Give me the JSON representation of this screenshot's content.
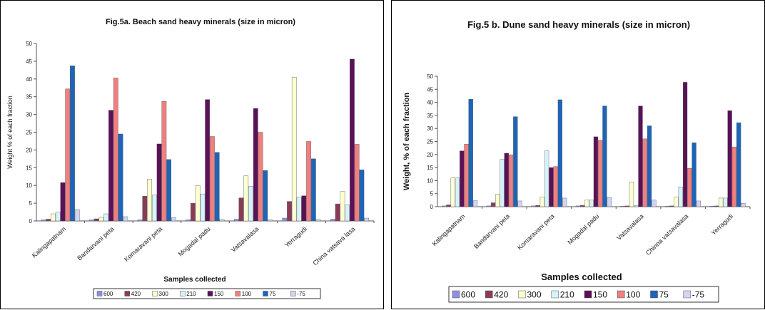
{
  "colors": {
    "600": "#8f8fe0",
    "420": "#8b3b5a",
    "300": "#ffffd2",
    "210": "#d6f3fb",
    "150": "#5a1158",
    "100": "#f07f80",
    "75": "#1d65b8",
    "-75": "#d3d3f3"
  },
  "chart_data": [
    {
      "type": "bar",
      "title": "Fig.5a. Beach sand heavy minerals (size in micron)",
      "xlabel": "Samples collected",
      "ylabel": "Weight % of each fraction",
      "ylim": [
        0,
        50
      ],
      "yticks": [
        0,
        5,
        10,
        15,
        20,
        25,
        30,
        35,
        40,
        45,
        50
      ],
      "grid": false,
      "legend": "bottom",
      "categories": [
        "Kalingapatnam",
        "Bandarvani peta",
        "Komaravani peta",
        "Mogadal padu",
        "Vatsavalasa",
        "Yerragudi",
        "China vatsava lasa"
      ],
      "series": [
        {
          "name": "600",
          "values": [
            0.3,
            0.3,
            0.3,
            0.3,
            0.5,
            0.8,
            0.5
          ]
        },
        {
          "name": "420",
          "values": [
            0.5,
            0.6,
            7,
            5,
            6.5,
            5.5,
            4.8
          ]
        },
        {
          "name": "300",
          "values": [
            2,
            1,
            11.8,
            10,
            12.7,
            40.5,
            8.3
          ]
        },
        {
          "name": "210",
          "values": [
            2.5,
            2,
            7.3,
            7.6,
            9.8,
            6.7,
            4.5
          ]
        },
        {
          "name": "150",
          "values": [
            10.8,
            31.2,
            21.7,
            34.2,
            31.7,
            7.1,
            45.6
          ]
        },
        {
          "name": "100",
          "values": [
            37.2,
            40.3,
            33.7,
            23.8,
            25,
            22.4,
            21.6
          ]
        },
        {
          "name": "75",
          "values": [
            43.7,
            24.5,
            17.3,
            19.3,
            14.2,
            17.5,
            14.4
          ]
        },
        {
          "name": "-75",
          "values": [
            3.2,
            1.2,
            0.9,
            0.4,
            0.3,
            0.4,
            0.8
          ]
        }
      ]
    },
    {
      "type": "bar",
      "title": "Fig.5 b. Dune sand heavy minerals (size in micron)",
      "xlabel": "Samples collected",
      "ylabel": "Weight, % of each fraction",
      "ylim": [
        0,
        50
      ],
      "yticks": [
        0,
        5,
        10,
        15,
        20,
        25,
        30,
        35,
        40,
        45,
        50
      ],
      "grid": false,
      "legend": "bottom",
      "categories": [
        "Kalingapatnam",
        "Bandarvani peta",
        "Komaravani peta",
        "Mogadal padu",
        "Vatsavalasa",
        "Chinna vatsavalasa",
        "Yerragudi"
      ],
      "series": [
        {
          "name": "600",
          "values": [
            0.3,
            0.3,
            0.3,
            0.3,
            0.2,
            0.2,
            0.2
          ]
        },
        {
          "name": "420",
          "values": [
            0.7,
            1.5,
            0.5,
            0.5,
            0.3,
            0.3,
            0.3
          ]
        },
        {
          "name": "300",
          "values": [
            11,
            4.7,
            3.7,
            2.5,
            9.5,
            3.7,
            3.3
          ]
        },
        {
          "name": "210",
          "values": [
            11,
            18.1,
            21.4,
            2.5,
            0.5,
            7.6,
            3.3
          ]
        },
        {
          "name": "150",
          "values": [
            21.4,
            20.5,
            15,
            26.8,
            38.6,
            47.7,
            36.8
          ]
        },
        {
          "name": "100",
          "values": [
            24,
            19.9,
            15.4,
            25.5,
            26,
            14.7,
            22.9
          ]
        },
        {
          "name": "75",
          "values": [
            41.2,
            34.5,
            41,
            38.6,
            31,
            24.5,
            32.2
          ]
        },
        {
          "name": "-75",
          "values": [
            2.3,
            2.2,
            3.3,
            3.5,
            2.5,
            2.2,
            1.3
          ]
        }
      ]
    }
  ]
}
